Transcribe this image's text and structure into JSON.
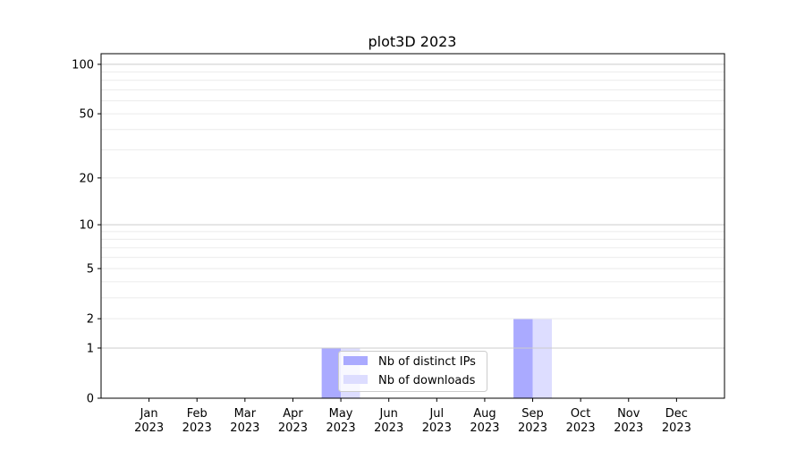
{
  "chart_data": {
    "type": "bar",
    "title": "plot3D 2023",
    "xlabel": "",
    "ylabel": "",
    "yscale": "log10(1+y)",
    "ylim": [
      0,
      116
    ],
    "yticks": [
      0,
      1,
      2,
      5,
      10,
      20,
      50,
      100
    ],
    "categories": [
      "Jan\n2023",
      "Feb\n2023",
      "Mar\n2023",
      "Apr\n2023",
      "May\n2023",
      "Jun\n2023",
      "Jul\n2023",
      "Aug\n2023",
      "Sep\n2023",
      "Oct\n2023",
      "Nov\n2023",
      "Dec\n2023"
    ],
    "series": [
      {
        "name": "Nb of distinct IPs",
        "color": "#aaaaff",
        "values": [
          0,
          0,
          0,
          0,
          1,
          0,
          0,
          0,
          2,
          0,
          0,
          0
        ]
      },
      {
        "name": "Nb of downloads",
        "color": "#ddddff",
        "values": [
          0,
          0,
          0,
          0,
          1,
          0,
          0,
          0,
          2,
          0,
          0,
          0
        ]
      }
    ],
    "grid": {
      "major": true,
      "minor": true,
      "axis": "y"
    },
    "legend": "lower-center"
  }
}
